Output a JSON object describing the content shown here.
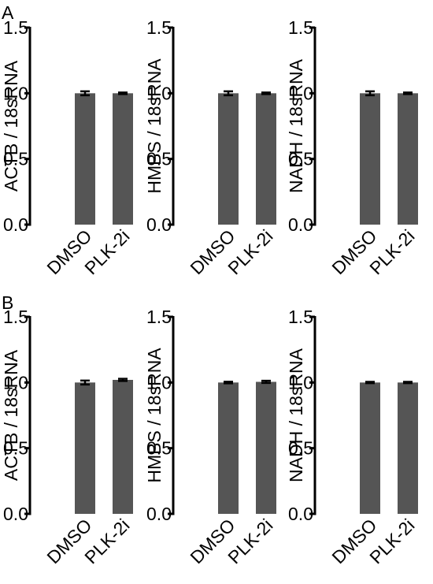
{
  "panel_labels": [
    "A",
    "B"
  ],
  "chart_data": [
    {
      "type": "bar",
      "y_label": "ACTB / 18sRNA",
      "categories": [
        "DMSO",
        "PLK-2i"
      ],
      "values": [
        1.0,
        1.0
      ],
      "errors": [
        0.015,
        0.006
      ],
      "color": "#555555",
      "ylim": [
        0,
        1.5
      ],
      "yticks": [
        {
          "value": 0,
          "label": "0.0"
        },
        0.5,
        {
          "value": 1,
          "label": "1.0"
        },
        1.5
      ]
    },
    {
      "type": "bar",
      "y_label": "HMBS / 18sRNA",
      "categories": [
        "DMSO",
        "PLK-2i"
      ],
      "values": [
        1.0,
        1.0
      ],
      "errors": [
        0.015,
        0.006
      ],
      "color": "#555555",
      "ylim": [
        0,
        1.5
      ],
      "yticks": [
        {
          "value": 0,
          "label": "0.0"
        },
        0.5,
        {
          "value": 1,
          "label": "1.0"
        },
        1.5
      ]
    },
    {
      "type": "bar",
      "y_label": "NADH / 18sRNA",
      "categories": [
        "DMSO",
        "PLK-2i"
      ],
      "values": [
        1.0,
        1.0
      ],
      "errors": [
        0.015,
        0.006
      ],
      "color": "#555555",
      "ylim": [
        0,
        1.5
      ],
      "yticks": [
        {
          "value": 0,
          "label": "0.0"
        },
        0.5,
        {
          "value": 1,
          "label": "1.0"
        },
        1.5
      ]
    },
    {
      "type": "bar",
      "y_label": "ACTB / 18sRNA",
      "categories": [
        "DMSO",
        "PLK-2i"
      ],
      "values": [
        1.0,
        1.02
      ],
      "errors": [
        0.015,
        0.008
      ],
      "color": "#555555",
      "ylim": [
        0,
        1.5
      ],
      "yticks": [
        {
          "value": 0,
          "label": "0.0"
        },
        0.5,
        {
          "value": 1,
          "label": "1.0"
        },
        1.5
      ]
    },
    {
      "type": "bar",
      "y_label": "HMBS / 18sRNA",
      "categories": [
        "DMSO",
        "PLK-2i"
      ],
      "values": [
        1.0,
        1.005
      ],
      "errors": [
        0.006,
        0.008
      ],
      "color": "#555555",
      "ylim": [
        0,
        1.5
      ],
      "yticks": [
        {
          "value": 0,
          "label": "0.0"
        },
        0.5,
        {
          "value": 1,
          "label": "1.0"
        },
        1.5
      ]
    },
    {
      "type": "bar",
      "y_label": "NADH / 18sRNA",
      "categories": [
        "DMSO",
        "PLK-2i"
      ],
      "values": [
        1.0,
        1.0
      ],
      "errors": [
        0.005,
        0.005
      ],
      "color": "#555555",
      "ylim": [
        0,
        1.5
      ],
      "yticks": [
        {
          "value": 0,
          "label": "0.0"
        },
        0.5,
        {
          "value": 1,
          "label": "1.0"
        },
        1.5
      ]
    }
  ]
}
